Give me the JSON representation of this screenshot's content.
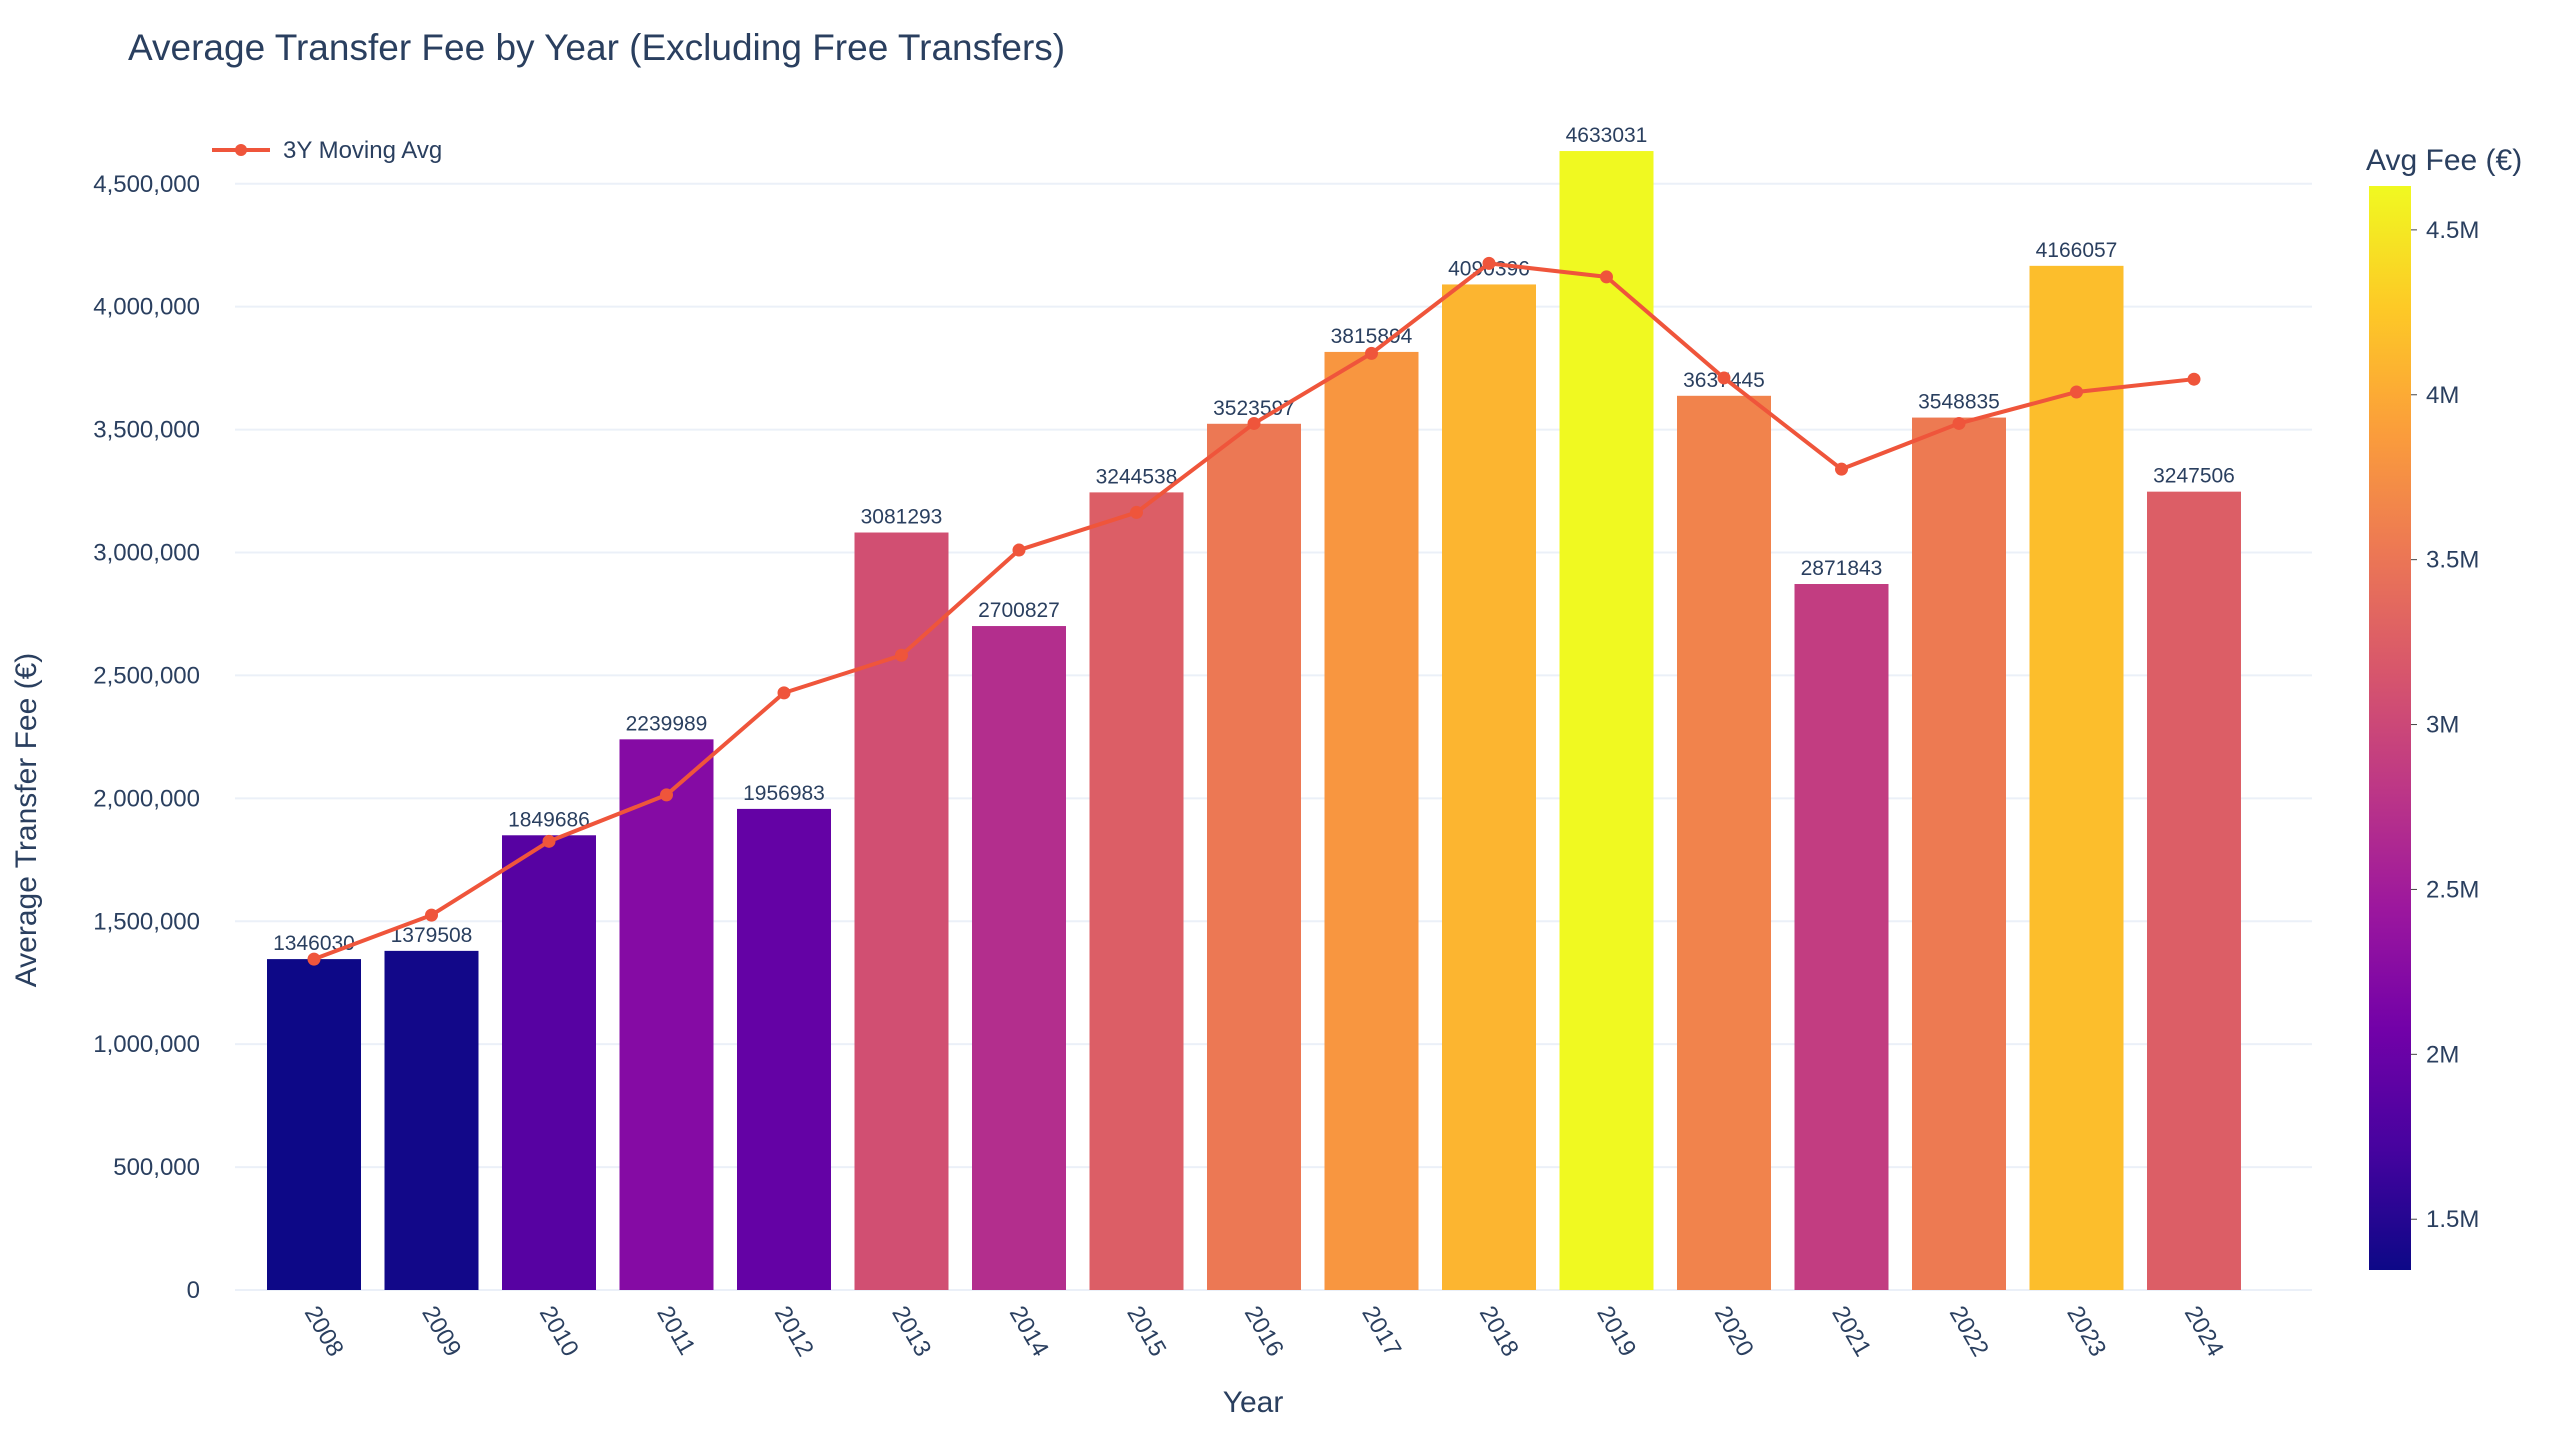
{
  "chart_data": {
    "type": "bar",
    "title": "Average Transfer Fee by Year (Excluding Free Transfers)",
    "xlabel": "Year",
    "ylabel": "Average Transfer Fee (€)",
    "ylim": [
      0,
      4800000
    ],
    "grid": true,
    "categories": [
      "2008",
      "2009",
      "2010",
      "2011",
      "2012",
      "2013",
      "2014",
      "2015",
      "2016",
      "2017",
      "2018",
      "2019",
      "2020",
      "2021",
      "2022",
      "2023",
      "2024"
    ],
    "values": [
      1346030,
      1379508,
      1849686,
      2239989,
      1956983,
      3081293,
      2700827,
      3244538,
      3523597,
      3815894,
      4090396,
      4633031,
      3637445,
      2871843,
      3548835,
      4166057,
      3247506
    ],
    "bar_labels": [
      "1346030",
      "1379508",
      "1849686",
      "2239989",
      "1956983",
      "3081293",
      "2700827",
      "3244538",
      "3523597",
      "3815894",
      "4090396",
      "4633031",
      "3637445",
      "2871843",
      "3548835",
      "4166057",
      "3247506"
    ],
    "y_ticks": [
      {
        "value": 0,
        "label": "0"
      },
      {
        "value": 500000,
        "label": "500,000"
      },
      {
        "value": 1000000,
        "label": "1,000,000"
      },
      {
        "value": 1500000,
        "label": "1,500,000"
      },
      {
        "value": 2000000,
        "label": "2,000,000"
      },
      {
        "value": 2500000,
        "label": "2,500,000"
      },
      {
        "value": 3000000,
        "label": "3,000,000"
      },
      {
        "value": 3500000,
        "label": "3,500,000"
      },
      {
        "value": 4000000,
        "label": "4,000,000"
      },
      {
        "value": 4500000,
        "label": "4,500,000"
      }
    ],
    "series": [
      {
        "name": "3Y Moving Avg",
        "type": "line",
        "color": "#ef553b",
        "values": [
          1346030,
          1525000,
          1825075,
          2014000,
          2429000,
          2582000,
          3010000,
          3163000,
          3525000,
          3810000,
          4176000,
          4121000,
          3710000,
          3339000,
          3525000,
          3653000,
          3705000
        ]
      }
    ],
    "legend": {
      "position": "top-left",
      "label": "3Y Moving Avg"
    },
    "colorbar": {
      "title": "Avg Fee (€)",
      "colorscale": "Plasma",
      "range": [
        1346030,
        4633031
      ],
      "ticks": [
        {
          "value": 1500000,
          "label": "1.5M"
        },
        {
          "value": 2000000,
          "label": "2M"
        },
        {
          "value": 2500000,
          "label": "2.5M"
        },
        {
          "value": 3000000,
          "label": "3M"
        },
        {
          "value": 3500000,
          "label": "3.5M"
        },
        {
          "value": 4000000,
          "label": "4M"
        },
        {
          "value": 4500000,
          "label": "4.5M"
        }
      ]
    },
    "colors": {
      "text": "#2a3f5f",
      "grid": "#ebf0f8",
      "line": "#ef553b",
      "plasma": [
        "#0d0887",
        "#46039f",
        "#7201a8",
        "#9c179e",
        "#bd3786",
        "#d8576b",
        "#ed7953",
        "#fb9f3a",
        "#fdca26",
        "#f0f921"
      ]
    }
  }
}
